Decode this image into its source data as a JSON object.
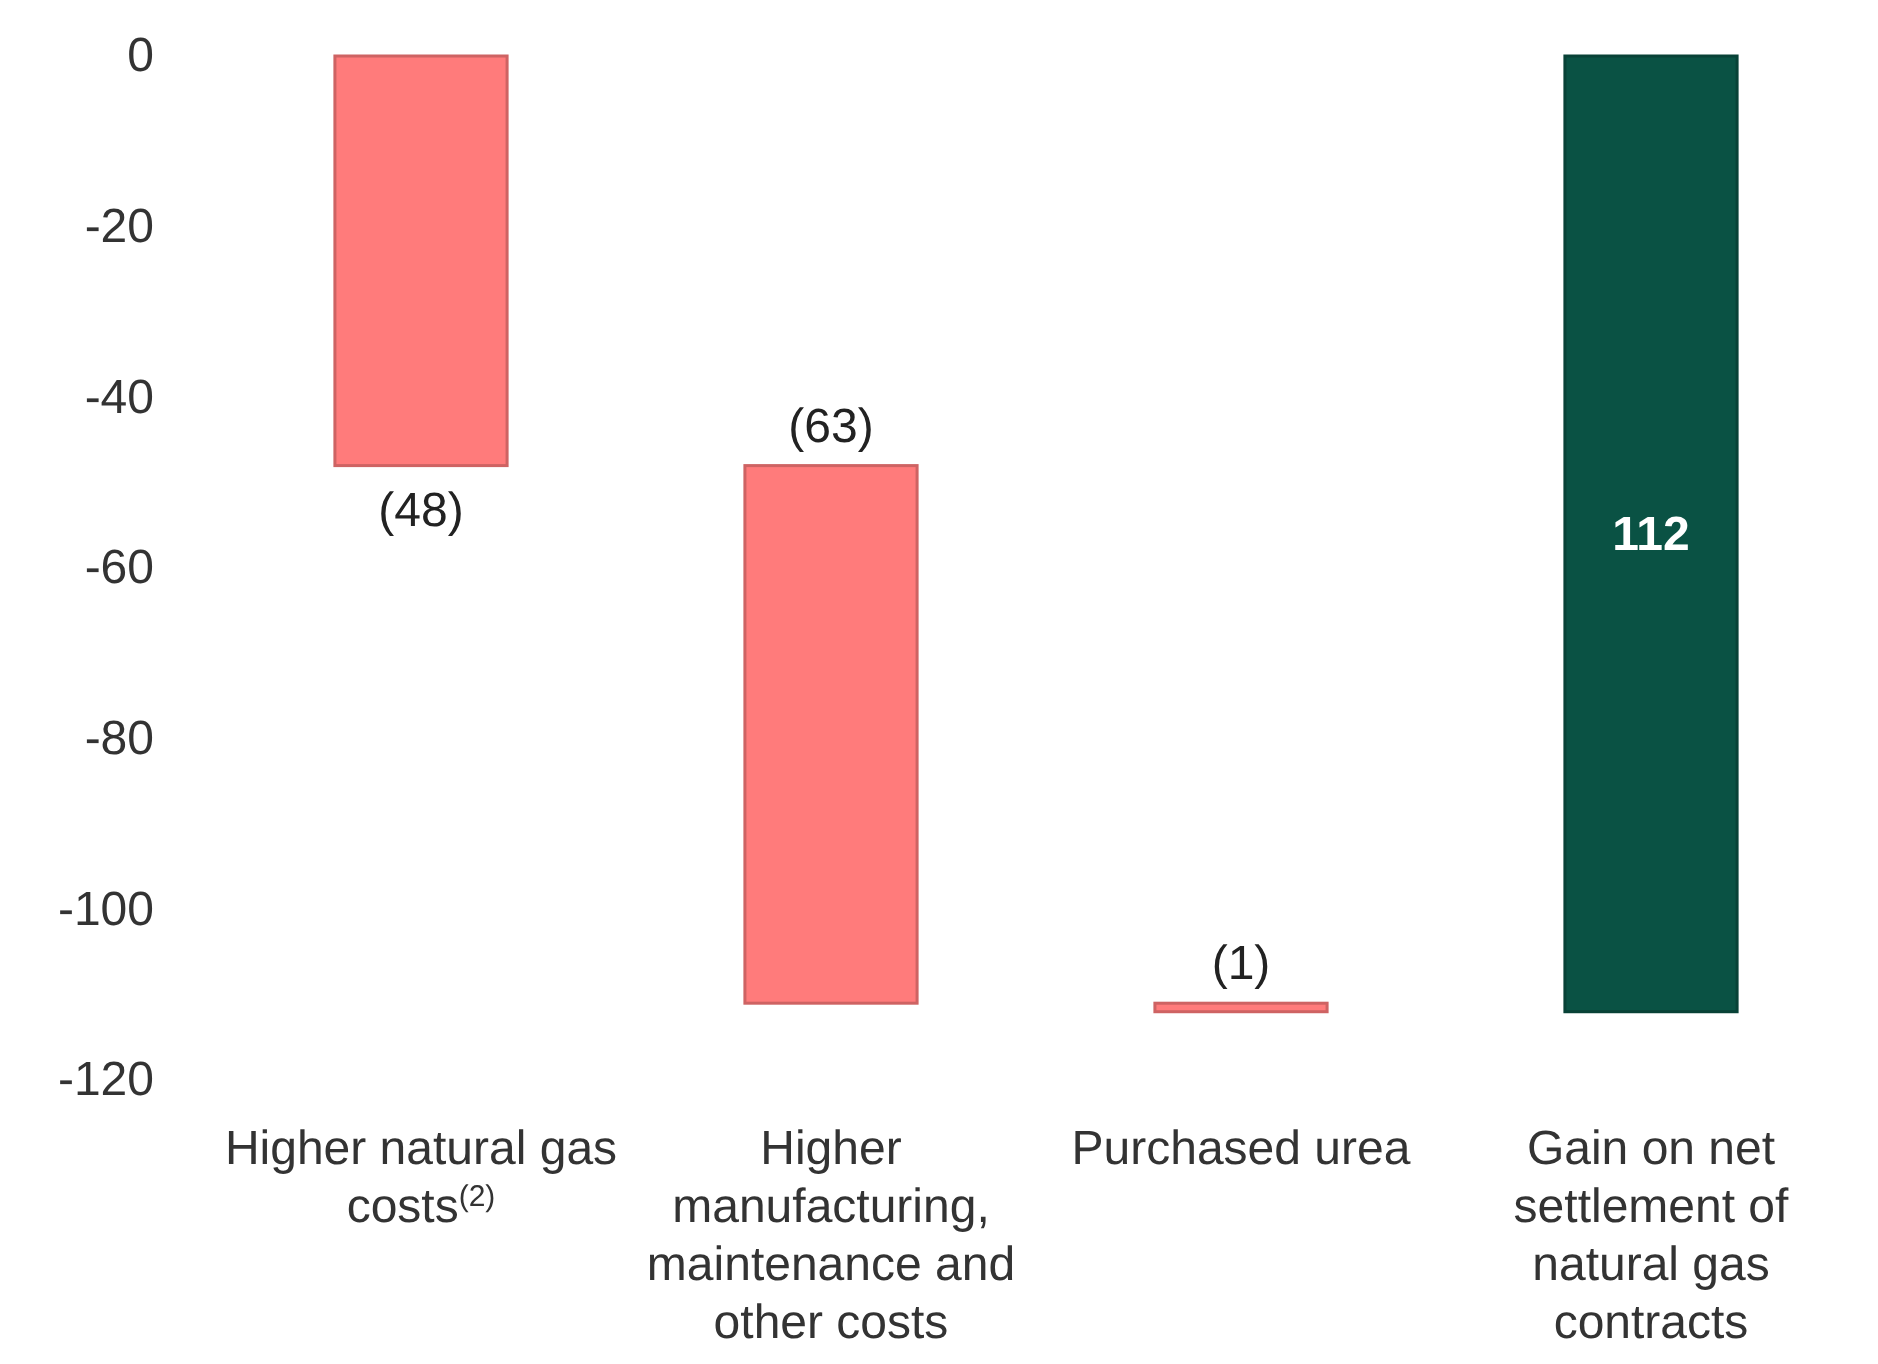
{
  "chart_data": {
    "type": "bar",
    "categories": [
      "Higher natural gas costs$^{(2)}$",
      "Higher manufacturing, maintenance and other costs",
      "Purchased urea",
      "Gain on net settlement of natural gas contracts"
    ],
    "values": [
      -48,
      -63,
      -1,
      112
    ],
    "base": [
      0,
      -48,
      -111,
      -112
    ],
    "colors": [
      "#ff7b7b",
      "#ff7b7b",
      "#ff7b7b",
      "#0a5244"
    ],
    "value_labels": [
      "(48)",
      "(63)",
      "(1)",
      "112"
    ],
    "ylim": [
      -120,
      0
    ],
    "yticks": [
      -120,
      -100,
      -80,
      -60,
      -40,
      -20,
      0
    ]
  }
}
